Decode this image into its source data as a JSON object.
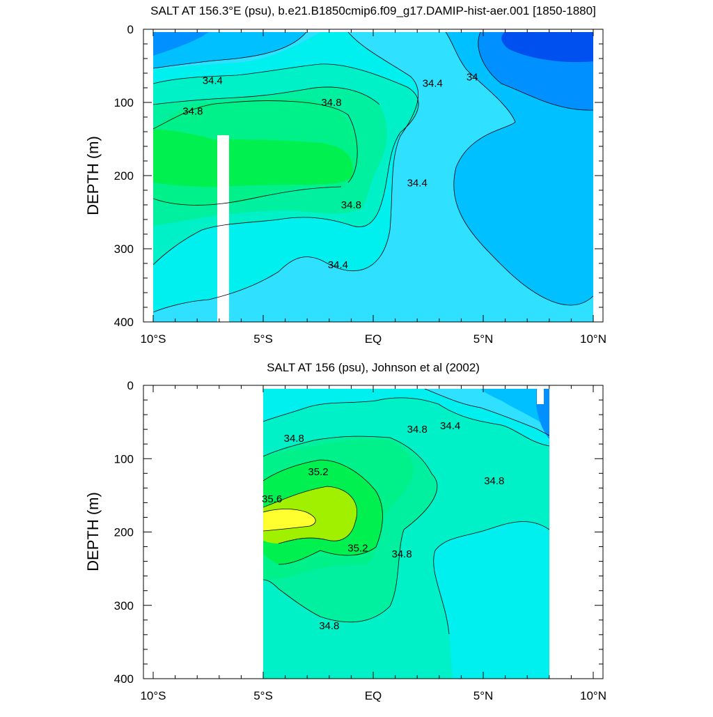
{
  "chart_data": [
    {
      "type": "contour",
      "title": "SALT AT 156.3°E (psu), b.e21.B1850cmip6.f09_g17.DAMIP-hist-aer.001 [1850-1880]",
      "ylabel": "DEPTH (m)",
      "xlabel": "",
      "x_ticks": [
        "10°S",
        "5°S",
        "EQ",
        "5°N",
        "10°N"
      ],
      "x_tick_values": [
        -10,
        -5,
        0,
        5,
        10
      ],
      "y_ticks": [
        "0",
        "100",
        "200",
        "300",
        "400"
      ],
      "y_tick_values": [
        0,
        100,
        200,
        300,
        400
      ],
      "xlim": [
        -10,
        10
      ],
      "ylim": [
        0,
        400
      ],
      "y_reversed": true,
      "contour_labels": [
        {
          "text": "34.4",
          "x": -7.3,
          "y": 70
        },
        {
          "text": "34.8",
          "x": -8.2,
          "y": 112
        },
        {
          "text": "34.8",
          "x": -1.9,
          "y": 100
        },
        {
          "text": "34.8",
          "x": -1.0,
          "y": 240
        },
        {
          "text": "34.4",
          "x": -1.6,
          "y": 322
        },
        {
          "text": "34.4",
          "x": 2.0,
          "y": 210
        },
        {
          "text": "34.4",
          "x": 2.7,
          "y": 74
        },
        {
          "text": "34",
          "x": 4.5,
          "y": 65
        }
      ],
      "colors": {
        "deep_blue": "#0050f0",
        "blue": "#0090ff",
        "light_blue": "#00c0ff",
        "cyan_blue": "#30e0ff",
        "cyan": "#00f0f0",
        "aqua_green": "#00f0c8",
        "teal_green": "#00f0a0",
        "spring_green": "#00f08a",
        "green": "#00f050"
      }
    },
    {
      "type": "contour",
      "title": "SALT AT 156 (psu), Johnson et al (2002)",
      "ylabel": "DEPTH (m)",
      "xlabel": "",
      "x_ticks": [
        "10°S",
        "5°S",
        "EQ",
        "5°N",
        "10°N"
      ],
      "x_tick_values": [
        -10,
        -5,
        0,
        5,
        10
      ],
      "y_ticks": [
        "0",
        "100",
        "200",
        "300",
        "400"
      ],
      "y_tick_values": [
        0,
        100,
        200,
        300,
        400
      ],
      "xlim": [
        -10,
        10
      ],
      "ylim": [
        0,
        400
      ],
      "y_reversed": true,
      "contour_labels": [
        {
          "text": "34.8",
          "x": -3.6,
          "y": 72
        },
        {
          "text": "34.8",
          "x": 2.0,
          "y": 60
        },
        {
          "text": "34.4",
          "x": 3.5,
          "y": 55
        },
        {
          "text": "34.8",
          "x": 5.5,
          "y": 130
        },
        {
          "text": "35.2",
          "x": -2.5,
          "y": 118
        },
        {
          "text": "35.6",
          "x": -4.6,
          "y": 155
        },
        {
          "text": "35.2",
          "x": -0.7,
          "y": 222
        },
        {
          "text": "34.8",
          "x": 1.3,
          "y": 230
        },
        {
          "text": "34.8",
          "x": -2.0,
          "y": 328
        }
      ],
      "colors": {
        "blue": "#0090ff",
        "light_blue": "#00c0ff",
        "cyan_blue": "#30e0ff",
        "cyan": "#00f0f0",
        "aqua_green": "#00f0c8",
        "teal_green": "#00f0a0",
        "spring_green": "#00f08a",
        "green": "#00f050",
        "yellow_green": "#a0f000",
        "yellow": "#ffff30"
      }
    }
  ]
}
